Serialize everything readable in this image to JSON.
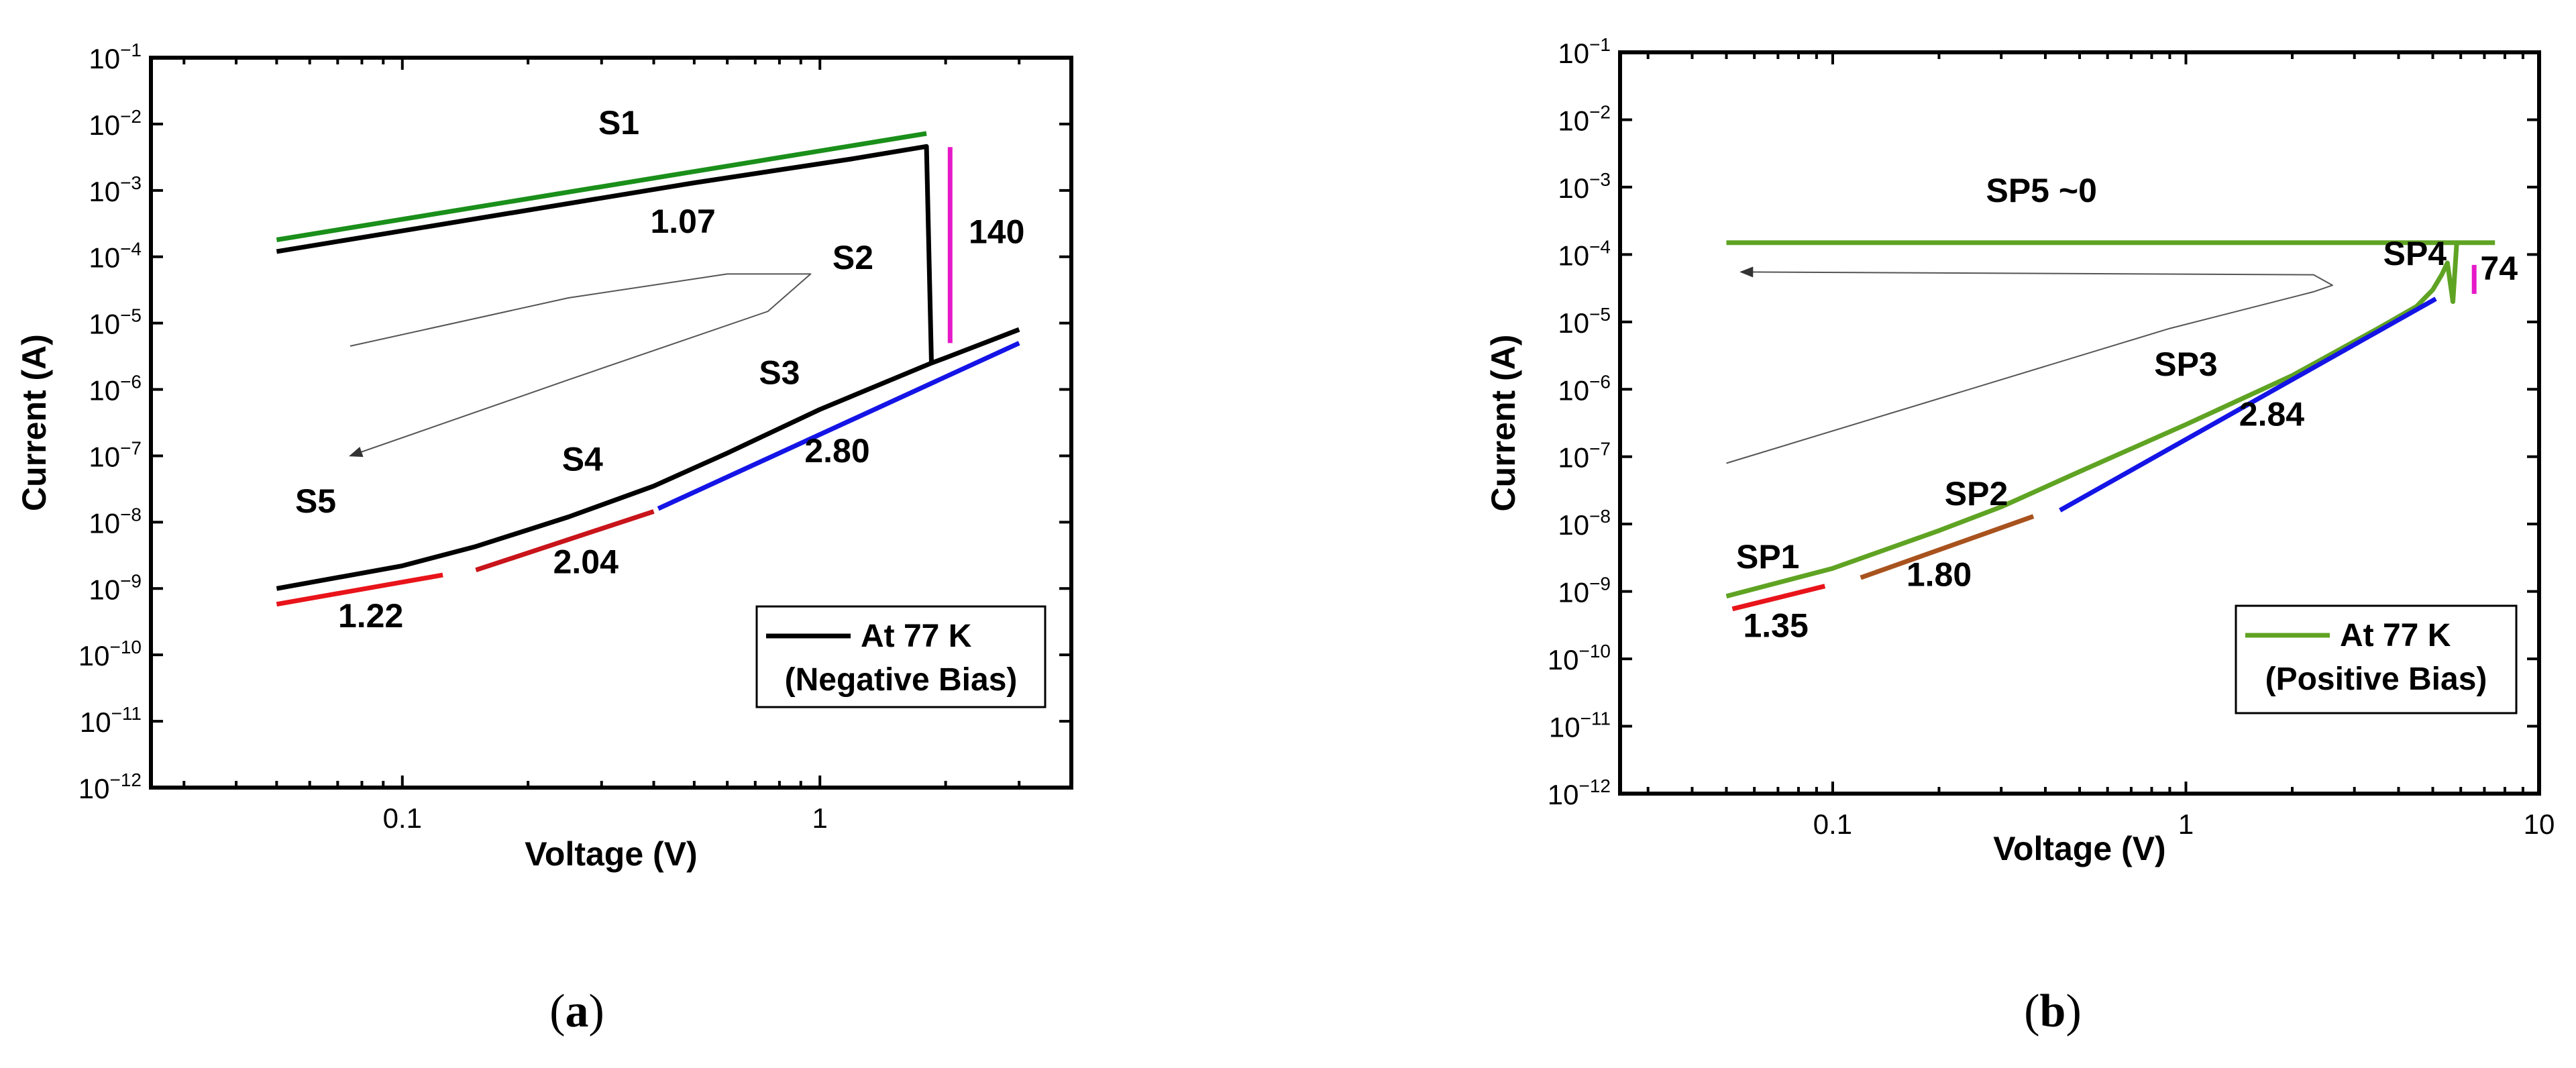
{
  "chart_data": [
    {
      "id": "a",
      "type": "line",
      "caption": "a",
      "xlabel": "Voltage (V)",
      "ylabel": "Current (A)",
      "x_scale": "log",
      "y_scale": "log",
      "xlim": [
        0.025,
        4.0
      ],
      "ylim": [
        1e-12,
        0.1
      ],
      "x_ticks": [
        {
          "v": 0.1,
          "label": "0.1"
        },
        {
          "v": 1,
          "label": "1"
        }
      ],
      "y_ticks": [
        -1,
        -2,
        -3,
        -4,
        -5,
        -6,
        -7,
        -8,
        -9,
        -10,
        -11,
        -12
      ],
      "y_tick_base": "10",
      "legend": {
        "entries": [
          "At 77 K",
          "(Negative Bias)"
        ],
        "line_color": "#000000",
        "placement": "bottom-right"
      },
      "series": [
        {
          "name": "I-V sweep (black)",
          "role": "data",
          "color": "#000000",
          "width": 7,
          "points": [
            [
              0.05,
              0.00012
            ],
            [
              0.5,
              0.0013
            ],
            [
              1.2,
              0.003
            ],
            [
              1.8,
              0.0046
            ],
            [
              1.85,
              2.5e-06
            ],
            [
              2.0,
              3e-06
            ],
            [
              3.0,
              8e-06
            ]
          ]
        },
        {
          "name": "I-V sweep low",
          "role": "data",
          "color": "#000000",
          "width": 7,
          "points": [
            [
              0.05,
              1e-09
            ],
            [
              0.1,
              2.2e-09
            ],
            [
              0.15,
              4.3e-09
            ],
            [
              0.25,
              1.2e-08
            ],
            [
              0.4,
              3.5e-08
            ],
            [
              0.6,
              1.1e-07
            ],
            [
              1.0,
              5e-07
            ],
            [
              1.85,
              2.5e-06
            ]
          ]
        },
        {
          "name": "S1 fit",
          "role": "fit",
          "color": "#1a8f1a",
          "width": 7,
          "points": [
            [
              0.05,
              0.00018
            ],
            [
              1.8,
              0.0072
            ]
          ]
        },
        {
          "name": "S5 fit",
          "role": "fit",
          "color": "#e8141a",
          "width": 7,
          "points": [
            [
              0.05,
              5.8e-10
            ],
            [
              0.125,
              1.6e-09
            ]
          ]
        },
        {
          "name": "S4 fit",
          "role": "fit",
          "color": "#c8141a",
          "width": 7,
          "points": [
            [
              0.15,
              1.9e-09
            ],
            [
              0.4,
              1.45e-08
            ]
          ]
        },
        {
          "name": "S3 fit",
          "role": "fit",
          "color": "#1414e6",
          "width": 7,
          "points": [
            [
              0.41,
              1.6e-08
            ],
            [
              3.0,
              5e-06
            ]
          ]
        },
        {
          "name": "S2 sweep direction",
          "role": "arrow",
          "color": "#555555",
          "width": 2,
          "points": [
            [
              0.075,
              4.5e-06
            ],
            [
              0.25,
              2.4e-05
            ],
            [
              0.6,
              5.5e-05
            ],
            [
              0.95,
              5.5e-05
            ],
            [
              0.75,
              1.5e-05
            ],
            [
              0.25,
              1.4e-06
            ],
            [
              0.075,
              1e-07
            ]
          ]
        },
        {
          "name": "jump marker",
          "role": "marker",
          "color": "#e619c8",
          "width": 7,
          "points": [
            [
              2.05,
              0.0045
            ],
            [
              2.05,
              5e-06
            ]
          ]
        }
      ],
      "annotations": [
        {
          "text": "S1",
          "x": 0.33,
          "y": 0.007
        },
        {
          "text": "1.07",
          "x": 0.47,
          "y": 0.00023
        },
        {
          "text": "S2",
          "x": 1.2,
          "y": 6.5e-05
        },
        {
          "text": "140",
          "x": 2.65,
          "y": 0.00016
        },
        {
          "text": "S3",
          "x": 0.8,
          "y": 1.2e-06
        },
        {
          "text": "2.80",
          "x": 1.1,
          "y": 8e-08
        },
        {
          "text": "S4",
          "x": 0.27,
          "y": 6e-08
        },
        {
          "text": "S5",
          "x": 0.062,
          "y": 1.4e-08
        },
        {
          "text": "1.22",
          "x": 0.084,
          "y": 2.6e-10
        },
        {
          "text": "2.04",
          "x": 0.275,
          "y": 1.7e-09
        }
      ]
    },
    {
      "id": "b",
      "type": "line",
      "caption": "b",
      "xlabel": "Voltage (V)",
      "ylabel": "Current (A)",
      "x_scale": "log",
      "y_scale": "log",
      "xlim": [
        0.025,
        10
      ],
      "ylim": [
        1e-12,
        0.1
      ],
      "x_ticks": [
        {
          "v": 0.1,
          "label": "0.1"
        },
        {
          "v": 1,
          "label": "1"
        },
        {
          "v": 10,
          "label": "10"
        }
      ],
      "y_ticks": [
        -1,
        -2,
        -3,
        -4,
        -5,
        -6,
        -7,
        -8,
        -9,
        -10,
        -11,
        -12
      ],
      "y_tick_base": "10",
      "legend": {
        "entries": [
          "At 77 K",
          "(Positive Bias)"
        ],
        "line_color": "#5fa323",
        "placement": "bottom-right"
      },
      "series": [
        {
          "name": "I-V sweep up",
          "role": "data",
          "color": "#5fa323",
          "width": 7,
          "points": [
            [
              0.05,
              8.5e-10
            ],
            [
              0.1,
              2.2e-09
            ],
            [
              0.2,
              8e-09
            ],
            [
              0.3,
              1.8e-08
            ],
            [
              0.5,
              6e-08
            ],
            [
              1.0,
              3e-07
            ],
            [
              2.0,
              1.6e-06
            ],
            [
              3.5,
              8e-06
            ],
            [
              4.5,
              1.7e-05
            ],
            [
              5.0,
              3e-05
            ],
            [
              5.3,
              5e-05
            ],
            [
              5.5,
              7.5e-05
            ],
            [
              5.7,
              2e-05
            ],
            [
              5.85,
              0.00016
            ]
          ]
        },
        {
          "name": "I-V sweep return (SP5)",
          "role": "data",
          "color": "#5fa323",
          "width": 7,
          "points": [
            [
              0.05,
              0.00015
            ],
            [
              7.5,
              0.00015
            ]
          ]
        },
        {
          "name": "SP1 fit",
          "role": "fit",
          "color": "#e8141a",
          "width": 7,
          "points": [
            [
              0.052,
              5.5e-10
            ],
            [
              0.095,
              1.2e-09
            ]
          ]
        },
        {
          "name": "SP2 fit",
          "role": "fit",
          "color": "#a8521e",
          "width": 7,
          "points": [
            [
              0.12,
              1.6e-09
            ],
            [
              0.37,
              1.3e-08
            ]
          ]
        },
        {
          "name": "SP3 fit",
          "role": "fit",
          "color": "#1414e6",
          "width": 7,
          "points": [
            [
              0.44,
              1.6e-08
            ],
            [
              5.1,
              2.2e-05
            ]
          ]
        },
        {
          "name": "sweep direction",
          "role": "arrow",
          "color": "#555555",
          "width": 2,
          "points": [
            [
              0.05,
              8e-08
            ],
            [
              0.9,
              8e-06
            ],
            [
              2.3,
              2.8e-05
            ],
            [
              2.6,
              3.5e-05
            ],
            [
              2.3,
              5e-05
            ],
            [
              0.055,
              5.5e-05
            ]
          ]
        },
        {
          "name": "jump marker",
          "role": "marker",
          "color": "#e619c8",
          "width": 7,
          "points": [
            [
              6.55,
              7e-05
            ],
            [
              6.55,
              2.6e-05
            ]
          ]
        }
      ],
      "annotations": [
        {
          "text": "SP5 ~0",
          "x": 0.39,
          "y": 0.0006
        },
        {
          "text": "SP4",
          "x": 4.45,
          "y": 7e-05
        },
        {
          "text": "74",
          "x": 7.7,
          "y": 4.2e-05
        },
        {
          "text": "SP3",
          "x": 1.0,
          "y": 1.6e-06
        },
        {
          "text": "2.84",
          "x": 1.75,
          "y": 2.9e-07
        },
        {
          "text": "SP2",
          "x": 0.255,
          "y": 1.9e-08
        },
        {
          "text": "SP1",
          "x": 0.0655,
          "y": 2.2e-09
        },
        {
          "text": "1.35",
          "x": 0.069,
          "y": 2.1e-10
        },
        {
          "text": "1.80",
          "x": 0.2,
          "y": 1.2e-09
        }
      ]
    }
  ]
}
